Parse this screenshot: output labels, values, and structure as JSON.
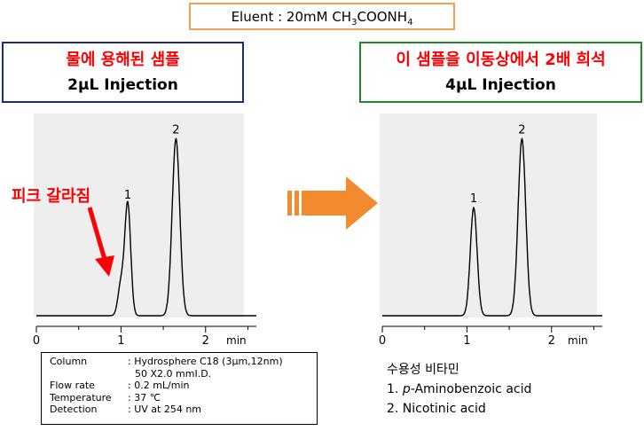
{
  "eluent": {
    "prefix": "Eluent : 20mM CH",
    "sub1": "3",
    "mid": "COONH",
    "sub2": "4"
  },
  "left_condition": {
    "title": "물에 용해된 샘플",
    "injection": "2μL Injection"
  },
  "right_condition": {
    "title": "이 샘플을 이동상에서 2배 희석",
    "injection": "4μL Injection"
  },
  "annotation": "피크 갈라짐",
  "conditions_table": [
    {
      "key": "Column",
      "value": ": Hydrosphere C18 (3μm,12nm)"
    },
    {
      "key": "",
      "value": "50 X2.0 mmI.D."
    },
    {
      "key": "Flow rate",
      "value": ": 0.2 mL/min"
    },
    {
      "key": "Temperature",
      "value": ": 37 ℃"
    },
    {
      "key": "Detection",
      "value": ": UV at 254 nm"
    }
  ],
  "analytes": {
    "heading": "수용성 비타민",
    "item1_num": "1. ",
    "item1_italic": "p",
    "item1_rest": "-Aminobenzoic acid",
    "item2": "2. Nicotinic acid"
  },
  "colors": {
    "arrow_orange": "#f28a30",
    "annotation_red": "#ff0000"
  },
  "chart_data": [
    {
      "type": "line",
      "name_hint": "left",
      "x_ticks": [
        "0",
        "1",
        "2"
      ],
      "x_unit": "min",
      "xlim": [
        0,
        2.6
      ],
      "ylim": [
        0,
        1.0
      ],
      "peaks": [
        {
          "label": "1",
          "rt": 1.08,
          "height": 0.6,
          "width": 0.035
        },
        {
          "label": "",
          "rt": 1.0,
          "height": 0.17,
          "width": 0.035
        },
        {
          "label": "2",
          "rt": 1.65,
          "height": 0.95,
          "width": 0.045
        }
      ]
    },
    {
      "type": "line",
      "name_hint": "right",
      "x_ticks": [
        "0",
        "1",
        "2"
      ],
      "x_unit": "min",
      "xlim": [
        0,
        2.6
      ],
      "ylim": [
        0,
        1.0
      ],
      "peaks": [
        {
          "label": "1",
          "rt": 1.08,
          "height": 0.58,
          "width": 0.04
        },
        {
          "label": "2",
          "rt": 1.65,
          "height": 0.95,
          "width": 0.045
        }
      ]
    }
  ]
}
